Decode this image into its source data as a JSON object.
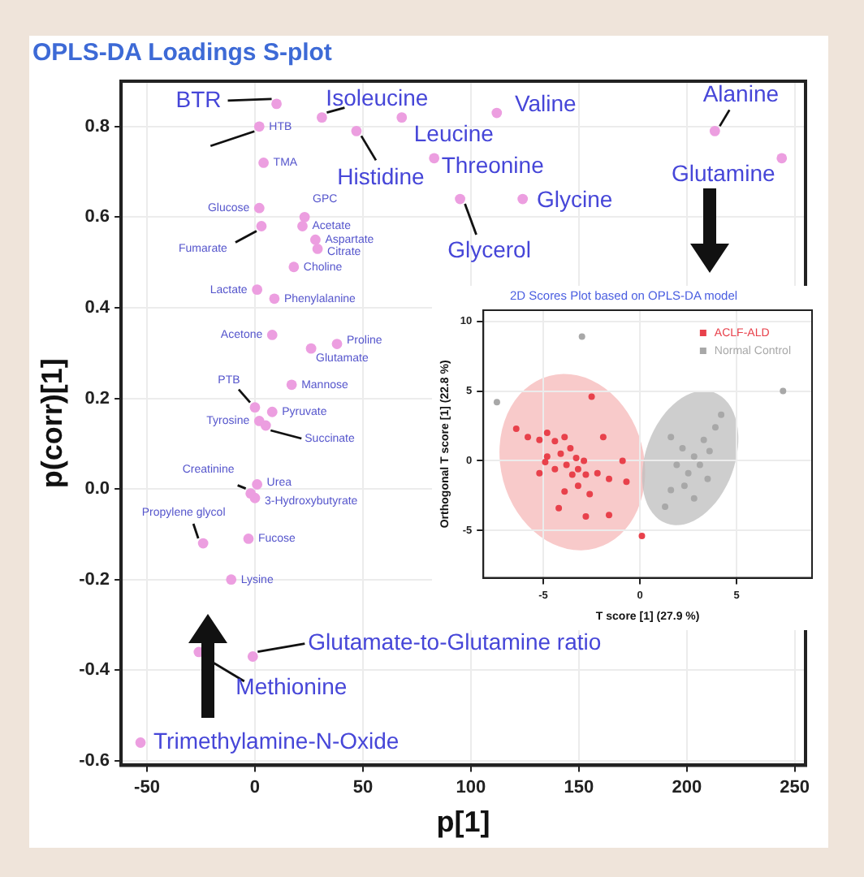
{
  "chart_data": [
    {
      "type": "scatter",
      "title": "OPLS-DA Loadings S-plot",
      "xlabel": "p[1]",
      "ylabel": "p(corr)[1]",
      "xlim": [
        -62,
        255
      ],
      "ylim": [
        -0.61,
        0.9
      ],
      "xticks": [
        -50,
        0,
        50,
        100,
        150,
        200,
        250
      ],
      "yticks": [
        -0.6,
        -0.4,
        -0.2,
        {
          "value": 0,
          "label": "0.0"
        },
        0.2,
        0.4,
        0.6,
        0.8
      ],
      "grid": true,
      "marker": "circle",
      "series": [
        {
          "color": "#ec9ee0",
          "x": [
            10,
            31,
            68,
            112,
            47,
            83,
            124,
            95,
            213,
            244,
            -26,
            -1,
            -53,
            2,
            4,
            2,
            3,
            23,
            22,
            28,
            29,
            18,
            1,
            9,
            8,
            38,
            26,
            17,
            0,
            8,
            2,
            5,
            1,
            0,
            -2,
            -24,
            -3,
            -11
          ],
          "values": [
            0.85,
            0.82,
            0.82,
            0.83,
            0.79,
            0.73,
            0.64,
            0.64,
            0.79,
            0.73,
            -0.36,
            -0.37,
            -0.56,
            0.8,
            0.72,
            0.62,
            0.58,
            0.6,
            0.58,
            0.55,
            0.53,
            0.49,
            0.44,
            0.42,
            0.34,
            0.32,
            0.31,
            0.23,
            0.18,
            0.17,
            0.15,
            0.14,
            0.01,
            -0.02,
            -0.01,
            -0.12,
            -0.11,
            -0.2
          ]
        }
      ],
      "annotations": [
        {
          "text": "BTR",
          "x": 10,
          "y": 0.85
        },
        {
          "text": "Isoleucine",
          "x": 31,
          "y": 0.82
        },
        {
          "text": "Leucine",
          "x": 68,
          "y": 0.82
        },
        {
          "text": "Valine",
          "x": 112,
          "y": 0.83
        },
        {
          "text": "Histidine",
          "x": 47,
          "y": 0.79
        },
        {
          "text": "Threonine",
          "x": 83,
          "y": 0.73
        },
        {
          "text": "Glycine",
          "x": 124,
          "y": 0.64
        },
        {
          "text": "Glycerol",
          "x": 95,
          "y": 0.64
        },
        {
          "text": "Alanine",
          "x": 213,
          "y": 0.79
        },
        {
          "text": "Glutamine",
          "x": 244,
          "y": 0.73
        },
        {
          "text": "Methionine",
          "x": -26,
          "y": -0.36
        },
        {
          "text": "Glutamate-to-Glutamine ratio",
          "x": -1,
          "y": -0.37
        },
        {
          "text": "Trimethylamine-N-Oxide",
          "x": -53,
          "y": -0.56
        },
        {
          "text": "HTB",
          "x": 2,
          "y": 0.8
        },
        {
          "text": "TMA",
          "x": 4,
          "y": 0.72
        },
        {
          "text": "Glucose",
          "x": 2,
          "y": 0.62
        },
        {
          "text": "Fumarate",
          "x": 3,
          "y": 0.58
        },
        {
          "text": "GPC",
          "x": 23,
          "y": 0.6
        },
        {
          "text": "Acetate",
          "x": 22,
          "y": 0.58
        },
        {
          "text": "Aspartate",
          "x": 28,
          "y": 0.55
        },
        {
          "text": "Citrate",
          "x": 29,
          "y": 0.53
        },
        {
          "text": "Choline",
          "x": 18,
          "y": 0.49
        },
        {
          "text": "Lactate",
          "x": 1,
          "y": 0.44
        },
        {
          "text": "Phenylalanine",
          "x": 9,
          "y": 0.42
        },
        {
          "text": "Acetone",
          "x": 8,
          "y": 0.34
        },
        {
          "text": "Proline",
          "x": 38,
          "y": 0.32
        },
        {
          "text": "Glutamate",
          "x": 26,
          "y": 0.31
        },
        {
          "text": "Mannose",
          "x": 17,
          "y": 0.23
        },
        {
          "text": "PTB",
          "x": 0,
          "y": 0.18
        },
        {
          "text": "Pyruvate",
          "x": 8,
          "y": 0.17
        },
        {
          "text": "Tyrosine",
          "x": 2,
          "y": 0.15
        },
        {
          "text": "Succinate",
          "x": 5,
          "y": 0.14
        },
        {
          "text": "Urea",
          "x": 1,
          "y": 0.01
        },
        {
          "text": "3-Hydroxybutyrate",
          "x": 0,
          "y": -0.02
        },
        {
          "text": "Creatinine",
          "x": -2,
          "y": -0.01
        },
        {
          "text": "Propylene glycol",
          "x": -24,
          "y": -0.12
        },
        {
          "text": "Fucose",
          "x": -3,
          "y": -0.11
        },
        {
          "text": "Lysine",
          "x": -11,
          "y": -0.2
        }
      ]
    },
    {
      "type": "scatter",
      "title": "2D Scores Plot based on OPLS-DA model",
      "xlabel": "T score [1] (27.9 %)",
      "ylabel": "Orthogonal T score [1] (22.8 %)",
      "xlim": [
        -8.1,
        8.9
      ],
      "ylim": [
        -8.4,
        10.8
      ],
      "xticks": [
        -5,
        0,
        5
      ],
      "yticks": [
        -5,
        0,
        5,
        10
      ],
      "grid": true,
      "marker": "circle",
      "legend": "top right",
      "series": [
        {
          "name": "ACLF-ALD",
          "color": "#e8414b",
          "x": [
            -6.4,
            -5.8,
            -5.2,
            -4.8,
            -4.4,
            -3.9,
            -3.6,
            -4.8,
            -4.1,
            -3.3,
            -2.9,
            -3.8,
            -3.2,
            -4.4,
            -4.9,
            -3.5,
            -2.8,
            -2.2,
            -1.6,
            -0.7,
            -0.9,
            -1.9,
            -3.9,
            -3.2,
            -2.6,
            -4.2,
            -2.8,
            -1.6,
            -5.2,
            0.1,
            -2.5
          ],
          "values": [
            2.3,
            1.7,
            1.5,
            2.0,
            1.4,
            1.7,
            0.9,
            0.3,
            0.5,
            0.2,
            0.0,
            -0.3,
            -0.6,
            -0.6,
            -0.1,
            -1.0,
            -1.0,
            -0.9,
            -1.3,
            -1.5,
            0.0,
            1.7,
            -2.2,
            -1.8,
            -2.4,
            -3.4,
            -4.0,
            -3.9,
            -0.9,
            -5.4,
            4.6
          ]
        },
        {
          "name": "Normal Control",
          "color": "#a8a8a8",
          "x": [
            -3.0,
            -7.4,
            7.4,
            1.6,
            2.2,
            2.8,
            1.9,
            2.5,
            3.1,
            3.6,
            3.3,
            2.3,
            1.6,
            2.8,
            3.9,
            4.2,
            1.3,
            3.5
          ],
          "values": [
            8.9,
            4.2,
            5.0,
            1.7,
            0.9,
            0.3,
            -0.3,
            -0.9,
            -0.3,
            0.7,
            1.5,
            -1.8,
            -2.1,
            -2.7,
            2.4,
            3.3,
            -3.3,
            -1.3
          ]
        }
      ]
    }
  ]
}
